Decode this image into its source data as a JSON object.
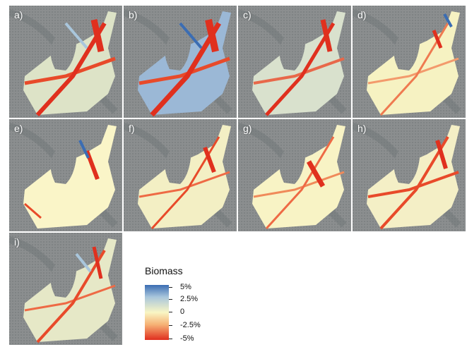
{
  "panels": [
    {
      "label": "a)"
    },
    {
      "label": "b)"
    },
    {
      "label": "c)"
    },
    {
      "label": "d)"
    },
    {
      "label": "e)"
    },
    {
      "label": "f)"
    },
    {
      "label": "g)"
    },
    {
      "label": "h)"
    },
    {
      "label": "i)"
    }
  ],
  "legend": {
    "title": "Biomass",
    "ticks": [
      "5%",
      "2.5%",
      "0",
      "-2.5%",
      "-5%"
    ],
    "colors": {
      "high": "#3b6db3",
      "mid_high": "#a9c6dc",
      "zero": "#f9f6c4",
      "mid_low": "#f6b275",
      "low": "#e02e1e"
    }
  }
}
